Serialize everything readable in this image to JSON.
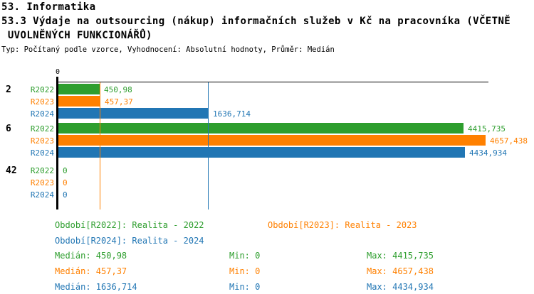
{
  "header": {
    "line1": "53. Informatika",
    "line2": "53.3 Výdaje na outsourcing (nákup) informačních služeb v Kč na pracovníka (VČETNĚ",
    "line3": " UVOLNĚNÝCH FUNKCIONÁŘŮ)",
    "meta": "Typ: Počítaný podle vzorce, Vyhodnocení: Absolutní hodnoty, Průměr: Medián"
  },
  "colors": {
    "r2022": "#2e9e2e",
    "r2023": "#ff8000",
    "r2024": "#2176b4",
    "axis": "#000000"
  },
  "chart_data": {
    "type": "bar",
    "orientation": "horizontal",
    "title": "53.3 Výdaje na outsourcing (nákup) informačních služeb v Kč na pracovníka (VČETNĚ UVOLNĚNÝCH FUNKCIONÁŘŮ)",
    "axis_tick_label": "0",
    "xlim": [
      0,
      4700
    ],
    "grid": false,
    "categories": [
      "2",
      "6",
      "42"
    ],
    "series": [
      {
        "name": "R2022",
        "color": "#2e9e2e",
        "values": [
          450.98,
          4415.735,
          0
        ],
        "labels": [
          "450,98",
          "4415,735",
          "0"
        ]
      },
      {
        "name": "R2023",
        "color": "#ff8000",
        "values": [
          457.37,
          4657.438,
          0
        ],
        "labels": [
          "457,37",
          "4657,438",
          "0"
        ]
      },
      {
        "name": "R2024",
        "color": "#2176b4",
        "values": [
          1636.714,
          4434.934,
          0
        ],
        "labels": [
          "1636,714",
          "4434,934",
          "0"
        ]
      }
    ],
    "median_lines": [
      {
        "series": "R2023",
        "value": 457.37,
        "color": "#ff8000"
      },
      {
        "series": "R2024",
        "value": 1636.714,
        "color": "#2176b4"
      }
    ]
  },
  "legend": {
    "items": [
      {
        "label": "Období[R2022]: Realita - 2022"
      },
      {
        "label": "Období[R2023]: Realita - 2023"
      },
      {
        "label": "Období[R2024]: Realita - 2024"
      }
    ],
    "stats": [
      {
        "median": "Medián: 450,98",
        "min": "Min: 0",
        "max": "Max: 4415,735"
      },
      {
        "median": "Medián: 457,37",
        "min": "Min: 0",
        "max": "Max: 4657,438"
      },
      {
        "median": "Medián: 1636,714",
        "min": "Min: 0",
        "max": "Max: 4434,934"
      }
    ]
  }
}
